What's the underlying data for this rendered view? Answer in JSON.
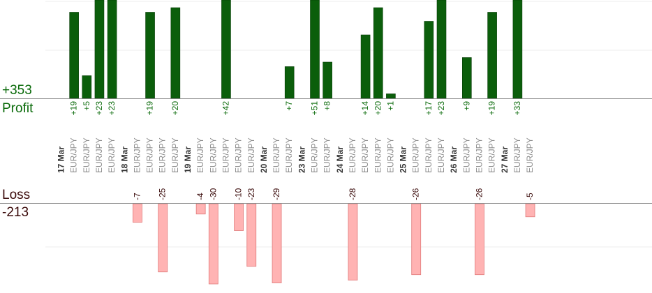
{
  "summary": {
    "profit_total": "+353",
    "profit_label": "Profit",
    "loss_label": "Loss",
    "loss_total": "-213"
  },
  "chart_data": {
    "type": "bar",
    "pair": "EUR/JPY",
    "dates": [
      "17 Mar",
      "18 Mar",
      "19 Mar",
      "20 Mar",
      "23 Mar",
      "24 Mar",
      "25 Mar",
      "26 Mar",
      "27 Mar"
    ],
    "groups": [
      {
        "date": "17 Mar",
        "trades": [
          19,
          5,
          23,
          23
        ]
      },
      {
        "date": "18 Mar",
        "trades": [
          -7,
          19,
          -25,
          20
        ]
      },
      {
        "date": "19 Mar",
        "trades": [
          -4,
          -30,
          42,
          -10,
          -23
        ]
      },
      {
        "date": "20 Mar",
        "trades": [
          -29,
          7
        ]
      },
      {
        "date": "23 Mar",
        "trades": [
          51,
          8
        ]
      },
      {
        "date": "24 Mar",
        "trades": [
          -28,
          14,
          20,
          1
        ]
      },
      {
        "date": "25 Mar",
        "trades": [
          -26,
          17,
          23
        ]
      },
      {
        "date": "26 Mar",
        "trades": [
          9,
          -26,
          19
        ]
      },
      {
        "date": "27 Mar",
        "trades": [
          33,
          -5
        ]
      }
    ]
  }
}
